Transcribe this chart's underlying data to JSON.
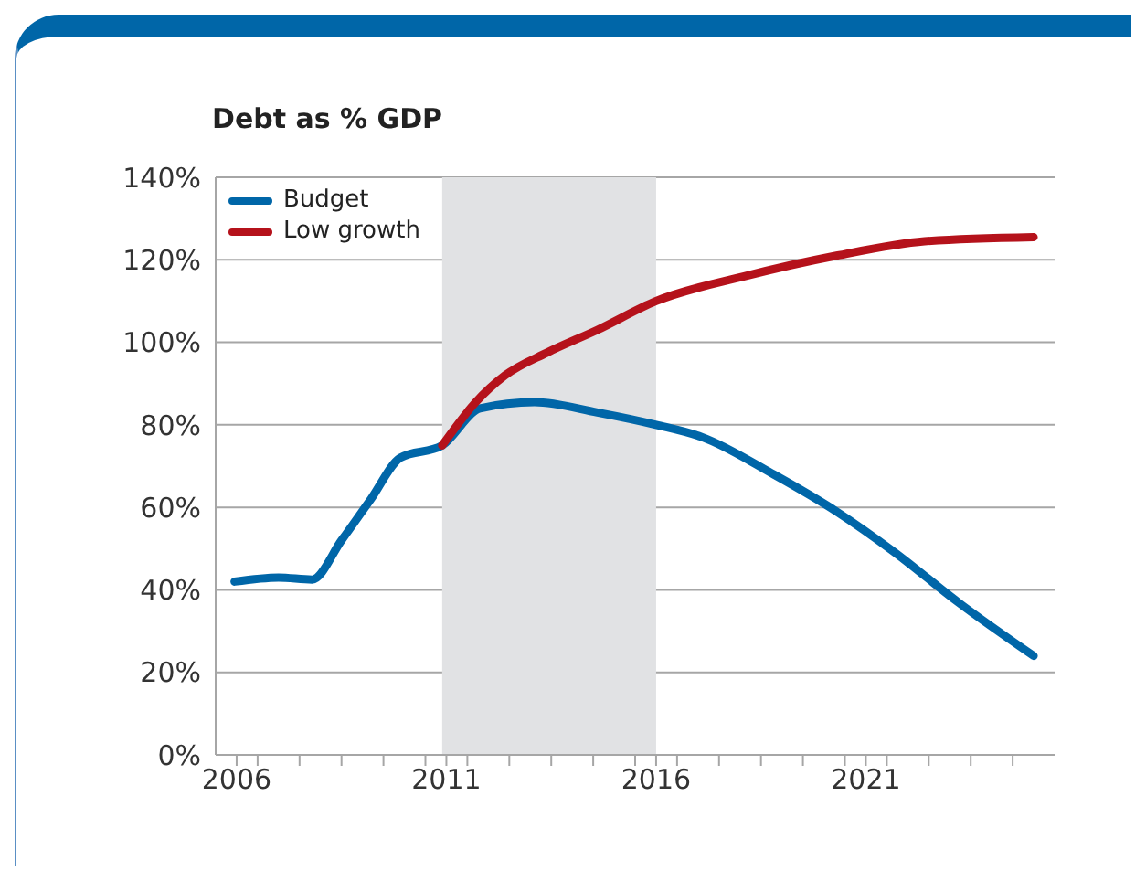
{
  "chart_data": {
    "type": "line",
    "title": "Debt as % GDP",
    "xlim": [
      2006,
      2026
    ],
    "xticks": [
      {
        "value": 2006.5,
        "label": "2006"
      },
      {
        "value": 2007,
        "label": null
      },
      {
        "value": 2008,
        "label": null
      },
      {
        "value": 2009,
        "label": null
      },
      {
        "value": 2010,
        "label": null
      },
      {
        "value": 2011,
        "label": null
      },
      {
        "value": 2011.5,
        "label": "2011"
      },
      {
        "value": 2012,
        "label": null
      },
      {
        "value": 2013,
        "label": null
      },
      {
        "value": 2014,
        "label": null
      },
      {
        "value": 2015,
        "label": null
      },
      {
        "value": 2016,
        "label": null
      },
      {
        "value": 2016.5,
        "label": "2016"
      },
      {
        "value": 2017,
        "label": null
      },
      {
        "value": 2018,
        "label": null
      },
      {
        "value": 2019,
        "label": null
      },
      {
        "value": 2020,
        "label": null
      },
      {
        "value": 2021,
        "label": null
      },
      {
        "value": 2021.5,
        "label": "2021"
      },
      {
        "value": 2022,
        "label": null
      },
      {
        "value": 2023,
        "label": null
      },
      {
        "value": 2024,
        "label": null
      },
      {
        "value": 2025,
        "label": null
      }
    ],
    "ylim": [
      0,
      140
    ],
    "yticks": [
      {
        "value": 0,
        "label": "0%"
      },
      {
        "value": 20,
        "label": "20%"
      },
      {
        "value": 40,
        "label": "40%"
      },
      {
        "value": 60,
        "label": "60%"
      },
      {
        "value": 80,
        "label": "80%"
      },
      {
        "value": 100,
        "label": "100%"
      },
      {
        "value": 120,
        "label": "120%"
      },
      {
        "value": 140,
        "label": "140%"
      }
    ],
    "grid": "y",
    "legend": "top left",
    "marker": "none",
    "line_style": "solid",
    "bands": [
      {
        "axis": "x",
        "from": 2011.4,
        "to": 2016.5,
        "color": "#e1e2e4"
      }
    ],
    "series": [
      {
        "name": "Budget",
        "color": "#0066a8",
        "x": [
          2006.45,
          2007.5,
          2008.3,
          2009.0,
          2009.7,
          2010.4,
          2011.4,
          2012.3,
          2013.6,
          2015.1,
          2016.5,
          2017.6,
          2019.3,
          2020.8,
          2022.2,
          2023.7,
          2025.5
        ],
        "values": [
          42,
          43,
          42.5,
          52,
          62,
          72,
          75,
          84,
          85.5,
          83,
          80,
          77,
          68,
          59,
          49,
          37,
          24
        ]
      },
      {
        "name": "Low growth",
        "color": "#b5121b",
        "x": [
          2011.4,
          2012.2,
          2012.9,
          2013.9,
          2015.1,
          2016.5,
          2018.6,
          2020.8,
          2022.9,
          2025.5
        ],
        "values": [
          75,
          85.5,
          92,
          97.5,
          103,
          110,
          116,
          121,
          124.5,
          125.5
        ]
      }
    ]
  }
}
